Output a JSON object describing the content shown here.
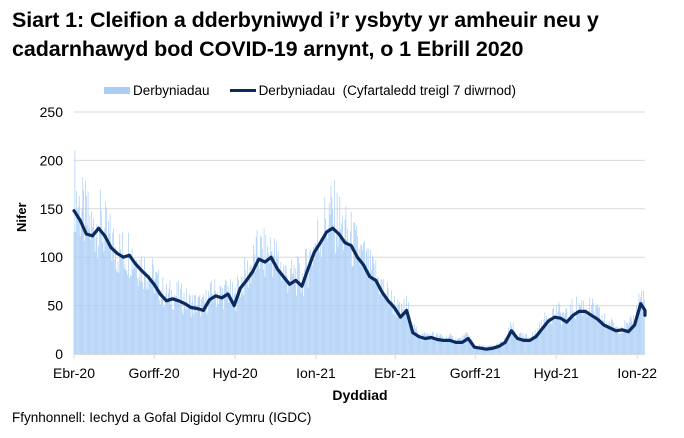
{
  "title": "Siart 1: Cleifion a dderbyniwyd i’r ysbyty yr amheuir neu y cadarnhawyd bod COVID-19 arnynt, o 1 Ebrill 2020",
  "legend": {
    "bars": "Derbyniadau",
    "line": "Derbyniadau  (Cyfartaledd treigl 7 diwrnod)"
  },
  "source": "Ffynhonnell: Iechyd a Gofal Digidol Cymru (IGDC)",
  "colors": {
    "bars": "#a9cdf7",
    "line": "#0b2a5e",
    "grid": "#d9d9d9"
  },
  "chart_data": {
    "type": "bar",
    "title": "Siart 1: Cleifion a dderbyniwyd i’r ysbyty yr amheuir neu y cadarnhawyd bod COVID-19 arnynt, o 1 Ebrill 2020",
    "xlabel": "Dyddiad",
    "ylabel": "Nifer",
    "ylim": [
      0,
      250
    ],
    "yticks": [
      0,
      50,
      100,
      150,
      200,
      250
    ],
    "xticks": [
      "Ebr-20",
      "Gorff-20",
      "Hyd-20",
      "Ion-21",
      "Ebr-21",
      "Gorff-21",
      "Hyd-21",
      "Ion-22"
    ],
    "xtick_days": [
      0,
      91,
      183,
      275,
      365,
      456,
      548,
      640
    ],
    "x_start": "2020-04-01",
    "interval_days": 7,
    "grid": true,
    "legend_position": "top",
    "series": [
      {
        "name": "Derbyniadau  (Cyfartaledd treigl 7 diwrnod)",
        "kind": "line",
        "values": [
          148,
          138,
          124,
          122,
          130,
          122,
          110,
          104,
          100,
          102,
          93,
          86,
          80,
          72,
          62,
          55,
          57,
          55,
          52,
          48,
          47,
          45,
          56,
          60,
          58,
          62,
          50,
          68,
          76,
          85,
          98,
          95,
          100,
          88,
          80,
          72,
          76,
          70,
          88,
          105,
          115,
          126,
          130,
          124,
          115,
          112,
          100,
          92,
          80,
          76,
          64,
          55,
          48,
          38,
          45,
          22,
          18,
          16,
          17,
          15,
          14,
          14,
          12,
          12,
          16,
          7,
          6,
          5,
          6,
          8,
          12,
          24,
          16,
          14,
          14,
          18,
          26,
          34,
          38,
          37,
          33,
          40,
          44,
          44,
          40,
          36,
          30,
          27,
          24,
          25,
          23,
          30,
          52,
          45,
          40
        ]
      },
      {
        "name": "Derbyniadau",
        "kind": "bar",
        "values": [
          175,
          150,
          140,
          128,
          138,
          126,
          116,
          108,
          104,
          108,
          98,
          92,
          86,
          78,
          68,
          60,
          62,
          60,
          56,
          52,
          52,
          50,
          60,
          64,
          62,
          66,
          56,
          74,
          82,
          92,
          106,
          102,
          108,
          96,
          86,
          78,
          82,
          76,
          94,
          112,
          124,
          140,
          145,
          136,
          124,
          118,
          106,
          98,
          86,
          82,
          70,
          60,
          52,
          42,
          50,
          26,
          22,
          19,
          20,
          18,
          17,
          17,
          15,
          15,
          20,
          9,
          8,
          7,
          8,
          10,
          14,
          28,
          19,
          17,
          17,
          22,
          30,
          40,
          44,
          42,
          38,
          46,
          50,
          50,
          46,
          42,
          35,
          31,
          28,
          29,
          27,
          36,
          62,
          52,
          46
        ]
      }
    ]
  }
}
